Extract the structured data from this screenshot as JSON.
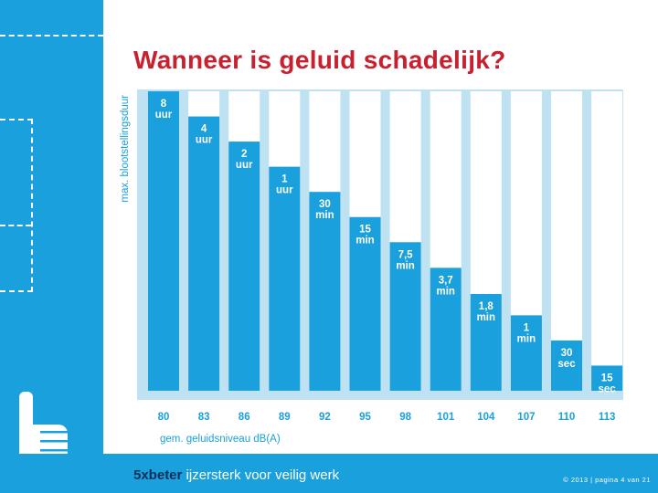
{
  "slide": {
    "title": "Wanneer is geluid schadelijk?",
    "footer_brand_bold": "5xbeter",
    "footer_brand_text": " ijzersterk voor veilig werk",
    "copyright": "© 2013 | pagina 4 van 21"
  },
  "colors": {
    "accent": "#1aa0dc",
    "title": "#c8202f",
    "brand_dark": "#0b2f5a",
    "bar": "#1aa0dc",
    "slot": "#ffffff"
  },
  "chart_data": {
    "type": "bar",
    "title": "Wanneer is geluid schadelijk?",
    "xlabel": "gem. geluidsniveau dB(A)",
    "ylabel": "max. blootstellingsduur",
    "categories": [
      "80",
      "83",
      "86",
      "89",
      "92",
      "95",
      "98",
      "101",
      "104",
      "107",
      "110",
      "113"
    ],
    "values": [
      480,
      240,
      120,
      60,
      30,
      15,
      7.5,
      3.7,
      1.8,
      1,
      0.5,
      0.25
    ],
    "value_unit": "min",
    "bar_labels": [
      [
        "8",
        "uur"
      ],
      [
        "4",
        "uur"
      ],
      [
        "2",
        "uur"
      ],
      [
        "1",
        "uur"
      ],
      [
        "30",
        "min"
      ],
      [
        "15",
        "min"
      ],
      [
        "7,5",
        "min"
      ],
      [
        "3,7",
        "min"
      ],
      [
        "1,8",
        "min"
      ],
      [
        "1",
        "min"
      ],
      [
        "30",
        "sec"
      ],
      [
        "15",
        "sec"
      ]
    ],
    "scale": "log2",
    "ylim": [
      0.25,
      480
    ],
    "grid": false
  }
}
